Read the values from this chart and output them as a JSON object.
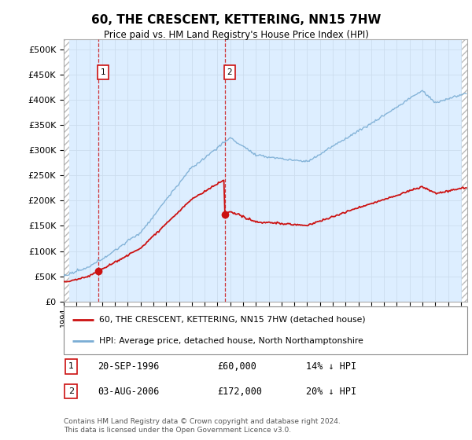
{
  "title": "60, THE CRESCENT, KETTERING, NN15 7HW",
  "subtitle": "Price paid vs. HM Land Registry's House Price Index (HPI)",
  "ylabel_ticks": [
    "£0",
    "£50K",
    "£100K",
    "£150K",
    "£200K",
    "£250K",
    "£300K",
    "£350K",
    "£400K",
    "£450K",
    "£500K"
  ],
  "ytick_values": [
    0,
    50000,
    100000,
    150000,
    200000,
    250000,
    300000,
    350000,
    400000,
    450000,
    500000
  ],
  "ylim": [
    0,
    520000
  ],
  "xlim_start": 1994.0,
  "xlim_end": 2025.5,
  "purchase1_year": 1996.72,
  "purchase1_price": 60000,
  "purchase2_year": 2006.58,
  "purchase2_price": 172000,
  "hpi_color": "#7aadd4",
  "price_color": "#cc1111",
  "bg_color": "#ddeeff",
  "hatch_color": "#bbbbbb",
  "grid_color": "#ccddee",
  "legend1": "60, THE CRESCENT, KETTERING, NN15 7HW (detached house)",
  "legend2": "HPI: Average price, detached house, North Northamptonshire",
  "annotation1_date": "20-SEP-1996",
  "annotation1_price": "£60,000",
  "annotation1_hpi": "14% ↓ HPI",
  "annotation2_date": "03-AUG-2006",
  "annotation2_price": "£172,000",
  "annotation2_hpi": "20% ↓ HPI",
  "footer": "Contains HM Land Registry data © Crown copyright and database right 2024.\nThis data is licensed under the Open Government Licence v3.0."
}
